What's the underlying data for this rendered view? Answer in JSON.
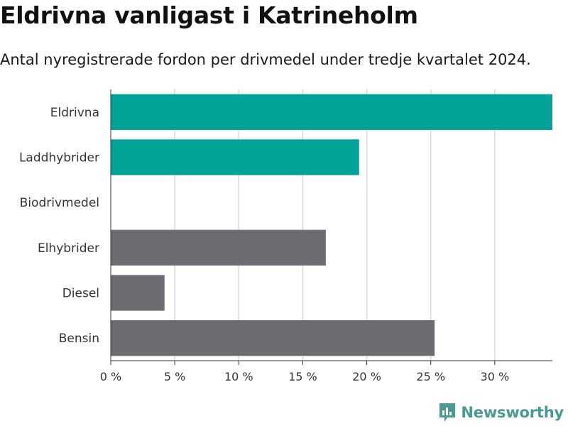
{
  "title": "Eldrivna vanligast i Katrineholm",
  "subtitle": "Antal nyregistrerade fordon per drivmedel under tredje kvartalet 2024.",
  "brand": {
    "name": "Newsworthy",
    "color": "#4a9a91",
    "icon": "newsworthy-chart-bubble-icon"
  },
  "colors": {
    "highlight": "#00a398",
    "other": "#6d6c73",
    "grid": "#d9d9d9",
    "axis": "#333333"
  },
  "chart_data": {
    "type": "bar",
    "orientation": "horizontal",
    "categories": [
      "Eldrivna",
      "Laddhybrider",
      "Biodrivmedel",
      "Elhybrider",
      "Diesel",
      "Bensin"
    ],
    "values": [
      34.5,
      19.4,
      0,
      16.8,
      4.2,
      25.3
    ],
    "highlighted": [
      true,
      true,
      false,
      false,
      false,
      false
    ],
    "x_ticks": [
      0,
      5,
      10,
      15,
      20,
      25,
      30
    ],
    "x_tick_labels": [
      "0 %",
      "5 %",
      "10 %",
      "15 %",
      "20 %",
      "25 %",
      "30 %"
    ],
    "xlim": [
      0,
      34.5
    ],
    "grid": true,
    "xlabel": "",
    "ylabel": ""
  }
}
